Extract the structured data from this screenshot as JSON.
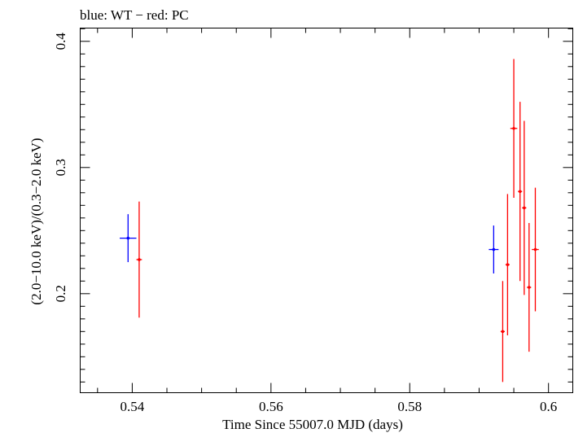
{
  "header": {
    "title": "blue: WT − red: PC"
  },
  "chart_data": {
    "type": "scatter",
    "title": "blue: WT − red: PC",
    "xlabel": "Time Since 55007.0 MJD (days)",
    "ylabel": "(2.0−10.0 keV)/(0.3−2.0 keV)",
    "xlim": [
      0.5325,
      0.6035
    ],
    "ylim": [
      0.1215,
      0.4105
    ],
    "xticks": [
      0.54,
      0.56,
      0.58,
      0.6
    ],
    "xtick_labels": [
      "0.54",
      "0.56",
      "0.58",
      "0.6"
    ],
    "yticks": [
      0.2,
      0.3,
      0.4
    ],
    "ytick_labels": [
      "0.2",
      "0.3",
      "0.4"
    ],
    "grid": false,
    "series": [
      {
        "color": "#0000ff",
        "points": [
          {
            "x": 0.5394,
            "y": 0.244,
            "xerr": 0.0012,
            "yerr_low": 0.019,
            "yerr_high": 0.019
          },
          {
            "x": 0.5921,
            "y": 0.235,
            "xerr": 0.0007,
            "yerr_low": 0.019,
            "yerr_high": 0.019
          }
        ]
      },
      {
        "color": "#ff0000",
        "points": [
          {
            "x": 0.541,
            "y": 0.227,
            "xerr": 0.0004,
            "yerr_low": 0.046,
            "yerr_high": 0.046
          },
          {
            "x": 0.5934,
            "y": 0.17,
            "xerr": 0.0003,
            "yerr_low": 0.04,
            "yerr_high": 0.04
          },
          {
            "x": 0.5941,
            "y": 0.223,
            "xerr": 0.0003,
            "yerr_low": 0.056,
            "yerr_high": 0.056
          },
          {
            "x": 0.595,
            "y": 0.331,
            "xerr": 0.0005,
            "yerr_low": 0.055,
            "yerr_high": 0.055
          },
          {
            "x": 0.5959,
            "y": 0.281,
            "xerr": 0.0003,
            "yerr_low": 0.071,
            "yerr_high": 0.071
          },
          {
            "x": 0.5965,
            "y": 0.268,
            "xerr": 0.0003,
            "yerr_low": 0.069,
            "yerr_high": 0.069
          },
          {
            "x": 0.5972,
            "y": 0.205,
            "xerr": 0.0003,
            "yerr_low": 0.051,
            "yerr_high": 0.051
          },
          {
            "x": 0.5981,
            "y": 0.235,
            "xerr": 0.0005,
            "yerr_low": 0.049,
            "yerr_high": 0.049
          }
        ]
      }
    ]
  }
}
